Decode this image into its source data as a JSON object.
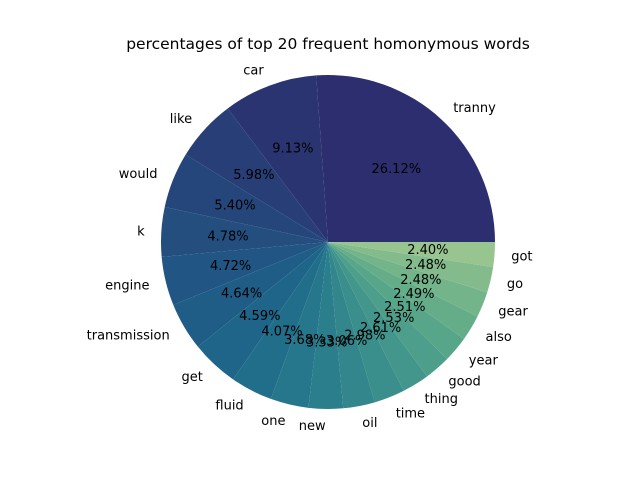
{
  "chart_data": {
    "type": "pie",
    "title": "percentages of top 20 frequent homonymous words",
    "slices": [
      {
        "label": "tranny",
        "value": 26.12,
        "pct_text": "26.12%",
        "color": "#2c2e6f"
      },
      {
        "label": "car",
        "value": 9.13,
        "pct_text": "9.13%",
        "color": "#2a3470"
      },
      {
        "label": "like",
        "value": 5.98,
        "pct_text": "5.98%",
        "color": "#283e76"
      },
      {
        "label": "would",
        "value": 5.4,
        "pct_text": "5.40%",
        "color": "#25467a"
      },
      {
        "label": "k",
        "value": 4.78,
        "pct_text": "4.78%",
        "color": "#234e7e"
      },
      {
        "label": "engine",
        "value": 4.72,
        "pct_text": "4.72%",
        "color": "#215583"
      },
      {
        "label": "transmission",
        "value": 4.64,
        "pct_text": "4.64%",
        "color": "#1f5d87"
      },
      {
        "label": "get",
        "value": 4.59,
        "pct_text": "4.59%",
        "color": "#1f6589"
      },
      {
        "label": "fluid",
        "value": 4.07,
        "pct_text": "4.07%",
        "color": "#216e8b"
      },
      {
        "label": "one",
        "value": 3.68,
        "pct_text": "3.68%",
        "color": "#26768c"
      },
      {
        "label": "new",
        "value": 3.33,
        "pct_text": "3.33%",
        "color": "#2b7e8c"
      },
      {
        "label": "oil",
        "value": 3.06,
        "pct_text": "3.06%",
        "color": "#32868c"
      },
      {
        "label": "time",
        "value": 2.98,
        "pct_text": "2.98%",
        "color": "#3a8e8c"
      },
      {
        "label": "thing",
        "value": 2.61,
        "pct_text": "2.61%",
        "color": "#42968b"
      },
      {
        "label": "good",
        "value": 2.53,
        "pct_text": "2.53%",
        "color": "#4d9e8a"
      },
      {
        "label": "year",
        "value": 2.51,
        "pct_text": "2.51%",
        "color": "#58a689"
      },
      {
        "label": "also",
        "value": 2.49,
        "pct_text": "2.49%",
        "color": "#65ad89"
      },
      {
        "label": "gear",
        "value": 2.48,
        "pct_text": "2.48%",
        "color": "#74b48a"
      },
      {
        "label": "go",
        "value": 2.48,
        "pct_text": "2.48%",
        "color": "#84bb8c"
      },
      {
        "label": "got",
        "value": 2.4,
        "pct_text": "2.40%",
        "color": "#98c48f"
      }
    ],
    "start_angle_deg": 0,
    "direction": "counterclockwise",
    "legend": "none"
  }
}
